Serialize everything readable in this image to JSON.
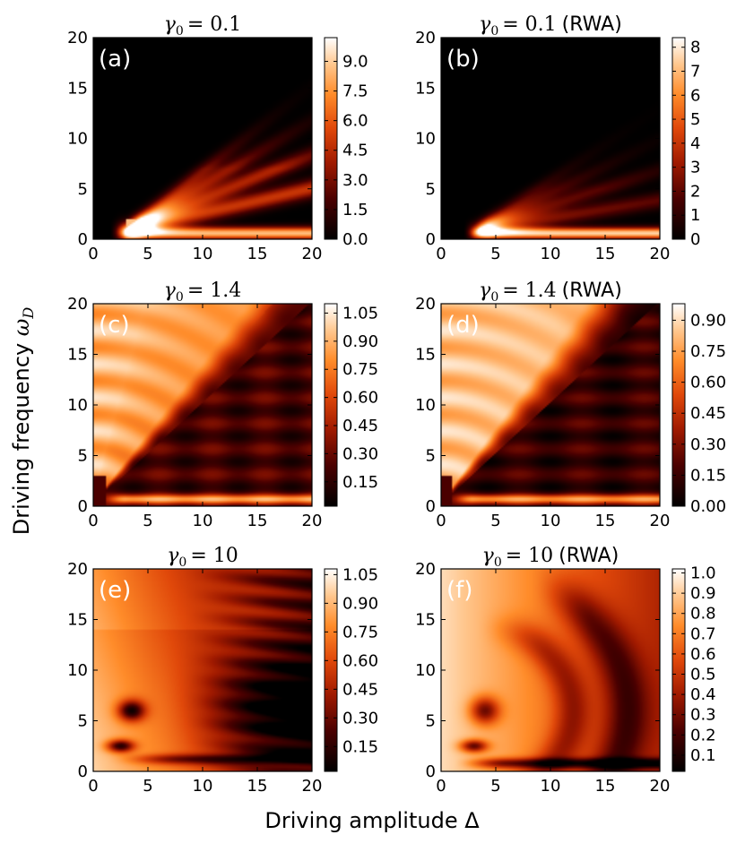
{
  "figure": {
    "ylabel": "Driving frequency",
    "ylabel_symbol": "ω",
    "ylabel_sub": "D",
    "xlabel": "Driving amplitude Δ"
  },
  "chart_data": [
    {
      "type": "heatmap",
      "panel": "(a)",
      "title_symbol": "γ",
      "title_sub": "0",
      "title_value": "= 0.1",
      "title_suffix": "",
      "x_range": [
        0,
        20
      ],
      "y_range": [
        0,
        20
      ],
      "x_ticks": [
        "0",
        "5",
        "10",
        "15",
        "20"
      ],
      "y_ticks": [
        "0",
        "5",
        "10",
        "15",
        "20"
      ],
      "colorbar_ticks": [
        "0.0",
        "1.5",
        "3.0",
        "4.5",
        "6.0",
        "7.5",
        "9.0"
      ],
      "colorbar_values": [
        0,
        1.5,
        3,
        4.5,
        6,
        7.5,
        9
      ],
      "colorbar_range": [
        0,
        10.2
      ],
      "pattern": "weak"
    },
    {
      "type": "heatmap",
      "panel": "(b)",
      "title_symbol": "γ",
      "title_sub": "0",
      "title_value": "= 0.1",
      "title_suffix": "(RWA)",
      "x_range": [
        0,
        20
      ],
      "y_range": [
        0,
        20
      ],
      "x_ticks": [
        "0",
        "5",
        "10",
        "15",
        "20"
      ],
      "y_ticks": [
        "0",
        "5",
        "10",
        "15",
        "20"
      ],
      "colorbar_ticks": [
        "0",
        "1",
        "2",
        "3",
        "4",
        "5",
        "6",
        "7",
        "8"
      ],
      "colorbar_values": [
        0,
        1,
        2,
        3,
        4,
        5,
        6,
        7,
        8
      ],
      "colorbar_range": [
        0,
        8.4
      ],
      "pattern": "weak_rwa"
    },
    {
      "type": "heatmap",
      "panel": "(c)",
      "title_symbol": "γ",
      "title_sub": "0",
      "title_value": "= 1.4",
      "title_suffix": "",
      "x_range": [
        0,
        20
      ],
      "y_range": [
        0,
        20
      ],
      "x_ticks": [
        "0",
        "5",
        "10",
        "15",
        "20"
      ],
      "y_ticks": [
        "0",
        "5",
        "10",
        "15",
        "20"
      ],
      "colorbar_ticks": [
        "0.15",
        "0.30",
        "0.45",
        "0.60",
        "0.75",
        "0.90",
        "1.05"
      ],
      "colorbar_values": [
        0.15,
        0.3,
        0.45,
        0.6,
        0.75,
        0.9,
        1.05
      ],
      "colorbar_range": [
        0.02,
        1.1
      ],
      "pattern": "mid"
    },
    {
      "type": "heatmap",
      "panel": "(d)",
      "title_symbol": "γ",
      "title_sub": "0",
      "title_value": "= 1.4",
      "title_suffix": "(RWA)",
      "x_range": [
        0,
        20
      ],
      "y_range": [
        0,
        20
      ],
      "x_ticks": [
        "0",
        "5",
        "10",
        "15",
        "20"
      ],
      "y_ticks": [
        "0",
        "5",
        "10",
        "15",
        "20"
      ],
      "colorbar_ticks": [
        "0.00",
        "0.15",
        "0.30",
        "0.45",
        "0.60",
        "0.75",
        "0.90"
      ],
      "colorbar_values": [
        0,
        0.15,
        0.3,
        0.45,
        0.6,
        0.75,
        0.9
      ],
      "colorbar_range": [
        0,
        0.98
      ],
      "pattern": "mid_rwa"
    },
    {
      "type": "heatmap",
      "panel": "(e)",
      "title_symbol": "γ",
      "title_sub": "0",
      "title_value": "= 10",
      "title_suffix": "",
      "x_range": [
        0,
        20
      ],
      "y_range": [
        0,
        20
      ],
      "x_ticks": [
        "0",
        "5",
        "10",
        "15",
        "20"
      ],
      "y_ticks": [
        "0",
        "5",
        "10",
        "15",
        "20"
      ],
      "colorbar_ticks": [
        "0.15",
        "0.30",
        "0.45",
        "0.60",
        "0.75",
        "0.90",
        "1.05"
      ],
      "colorbar_values": [
        0.15,
        0.3,
        0.45,
        0.6,
        0.75,
        0.9,
        1.05
      ],
      "colorbar_range": [
        0.02,
        1.08
      ],
      "pattern": "strong"
    },
    {
      "type": "heatmap",
      "panel": "(f)",
      "title_symbol": "γ",
      "title_sub": "0",
      "title_value": "= 10",
      "title_suffix": "(RWA)",
      "x_range": [
        0,
        20
      ],
      "y_range": [
        0,
        20
      ],
      "x_ticks": [
        "0",
        "5",
        "10",
        "15",
        "20"
      ],
      "y_ticks": [
        "0",
        "5",
        "10",
        "15",
        "20"
      ],
      "colorbar_ticks": [
        "0.1",
        "0.2",
        "0.3",
        "0.4",
        "0.5",
        "0.6",
        "0.7",
        "0.8",
        "0.9",
        "1.0"
      ],
      "colorbar_values": [
        0.1,
        0.2,
        0.3,
        0.4,
        0.5,
        0.6,
        0.7,
        0.8,
        0.9,
        1.0
      ],
      "colorbar_range": [
        0.02,
        1.02
      ],
      "pattern": "strong_rwa"
    }
  ]
}
